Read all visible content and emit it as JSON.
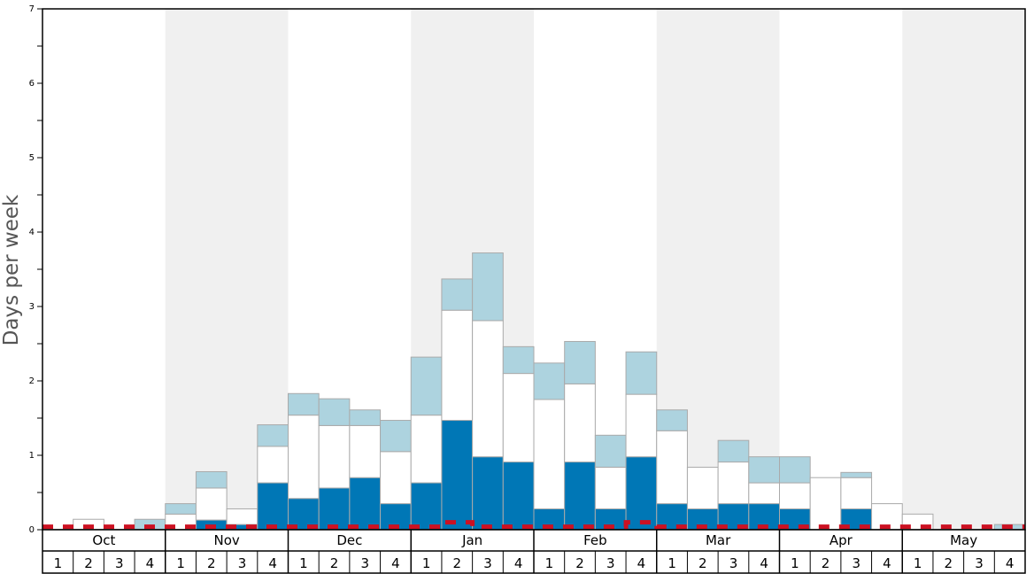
{
  "chart_data": {
    "type": "bar",
    "ylabel": "Days per week",
    "ylim": [
      0,
      7
    ],
    "y_ticks": [
      "0",
      "1",
      "2",
      "3",
      "4",
      "5",
      "6",
      "7"
    ],
    "months": [
      "Oct",
      "Nov",
      "Dec",
      "Jan",
      "Feb",
      "Mar",
      "Apr",
      "May"
    ],
    "week_labels": [
      "1",
      "2",
      "3",
      "4"
    ],
    "shaded_months": [
      "Nov",
      "Jan",
      "Mar",
      "May"
    ],
    "colors": {
      "dark": "#0077b6",
      "middle": "#ffffff",
      "light": "#add3df",
      "bar_border": "#aaaaaa",
      "shade": "#f0f0f0",
      "dashed_line": "#cc1122"
    },
    "series": [
      {
        "key": "dark",
        "values": [
          0,
          0,
          0,
          0,
          0,
          0.13,
          0.07,
          0.63,
          0.42,
          0.56,
          0.7,
          0.35,
          0.63,
          1.47,
          0.98,
          0.91,
          0.28,
          0.91,
          0.28,
          0.98,
          0.35,
          0.28,
          0.35,
          0.35,
          0.28,
          0,
          0.28,
          0,
          0,
          0,
          0,
          0
        ]
      },
      {
        "key": "middle",
        "values": [
          0,
          0.14,
          0,
          0,
          0.21,
          0.43,
          0.21,
          0.49,
          1.12,
          0.84,
          0.7,
          0.7,
          0.91,
          1.48,
          1.83,
          1.19,
          1.47,
          1.05,
          0.56,
          0.84,
          0.98,
          0.56,
          0.56,
          0.28,
          0.35,
          0.7,
          0.42,
          0.35,
          0.21,
          0,
          0,
          0
        ]
      },
      {
        "key": "light",
        "values": [
          0,
          0,
          0,
          0.14,
          0.14,
          0.22,
          0,
          0.29,
          0.29,
          0.36,
          0.21,
          0.42,
          0.78,
          0.42,
          0.91,
          0.36,
          0.49,
          0.57,
          0.43,
          0.57,
          0.28,
          0,
          0.29,
          0.35,
          0.35,
          0,
          0.07,
          0,
          0,
          0,
          0,
          0.07
        ]
      }
    ],
    "dashed_line_values": [
      0.04,
      0.04,
      0.04,
      0.04,
      0.04,
      0.04,
      0.04,
      0.04,
      0.04,
      0.04,
      0.04,
      0.04,
      0.04,
      0.1,
      0.04,
      0.04,
      0.04,
      0.04,
      0.04,
      0.1,
      0.04,
      0.04,
      0.04,
      0.04,
      0.04,
      0.04,
      0.04,
      0.04,
      0.04,
      0.04,
      0.04,
      0.04
    ]
  }
}
